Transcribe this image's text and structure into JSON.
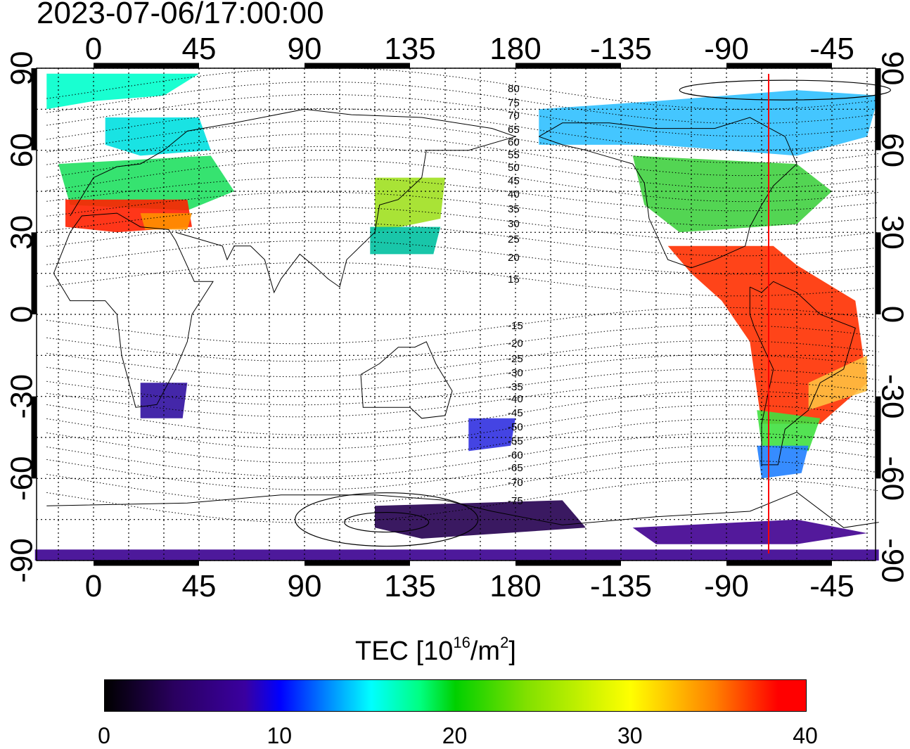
{
  "timestamp": "2023-07-06/17:00:00",
  "map": {
    "top_lon_labels": [
      "0",
      "45",
      "90",
      "135",
      "180",
      "-135",
      "-90",
      "-45"
    ],
    "bottom_lon_labels": [
      "0",
      "45",
      "90",
      "135",
      "180",
      "-135",
      "-90",
      "-45"
    ],
    "left_lat_labels": [
      "90",
      "60",
      "30",
      "0",
      "-30",
      "-60",
      "-90"
    ],
    "right_lat_labels": [
      "90",
      "60",
      "30",
      "0",
      "-30",
      "-60",
      "-90"
    ],
    "contour_labels": [
      "80",
      "75",
      "70",
      "65",
      "60",
      "55",
      "50",
      "45",
      "40",
      "35",
      "30",
      "25",
      "20",
      "15",
      "-15",
      "-20",
      "-25",
      "-30",
      "-35",
      "-40",
      "-45",
      "-50",
      "-55",
      "-60",
      "-65",
      "-70",
      "-75"
    ],
    "colors": {
      "red_meridian": "#ff0000"
    },
    "terminator_lon": -72
  },
  "colorbar": {
    "title_prefix": "TEC  [10",
    "title_exp": "16",
    "title_mid": "/m",
    "title_exp2": "2",
    "title_suffix": "]",
    "ticks": [
      "0",
      "10",
      "20",
      "30",
      "40"
    ],
    "range": [
      0,
      40
    ]
  }
}
